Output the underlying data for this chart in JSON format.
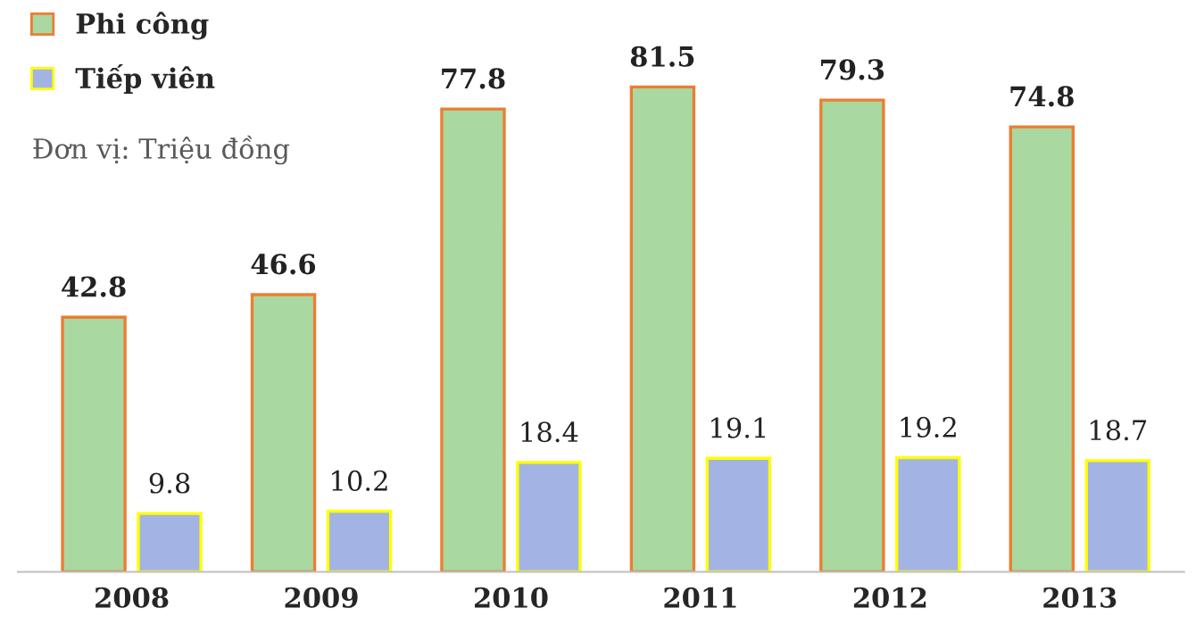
{
  "chart_data": {
    "type": "bar",
    "categories": [
      "2008",
      "2009",
      "2010",
      "2011",
      "2012",
      "2013"
    ],
    "series": [
      {
        "name": "Phi công",
        "color": "#a9d8a0",
        "values": [
          42.8,
          46.6,
          77.8,
          81.5,
          79.3,
          74.8
        ]
      },
      {
        "name": "Tiếp viên",
        "color": "#a3b4e4",
        "values": [
          9.8,
          10.2,
          18.4,
          19.1,
          19.2,
          18.7
        ]
      }
    ],
    "data_labels": true,
    "legend": "top left",
    "grid": false,
    "annotations": [
      "Đơn vị: Triệu đồng"
    ]
  }
}
